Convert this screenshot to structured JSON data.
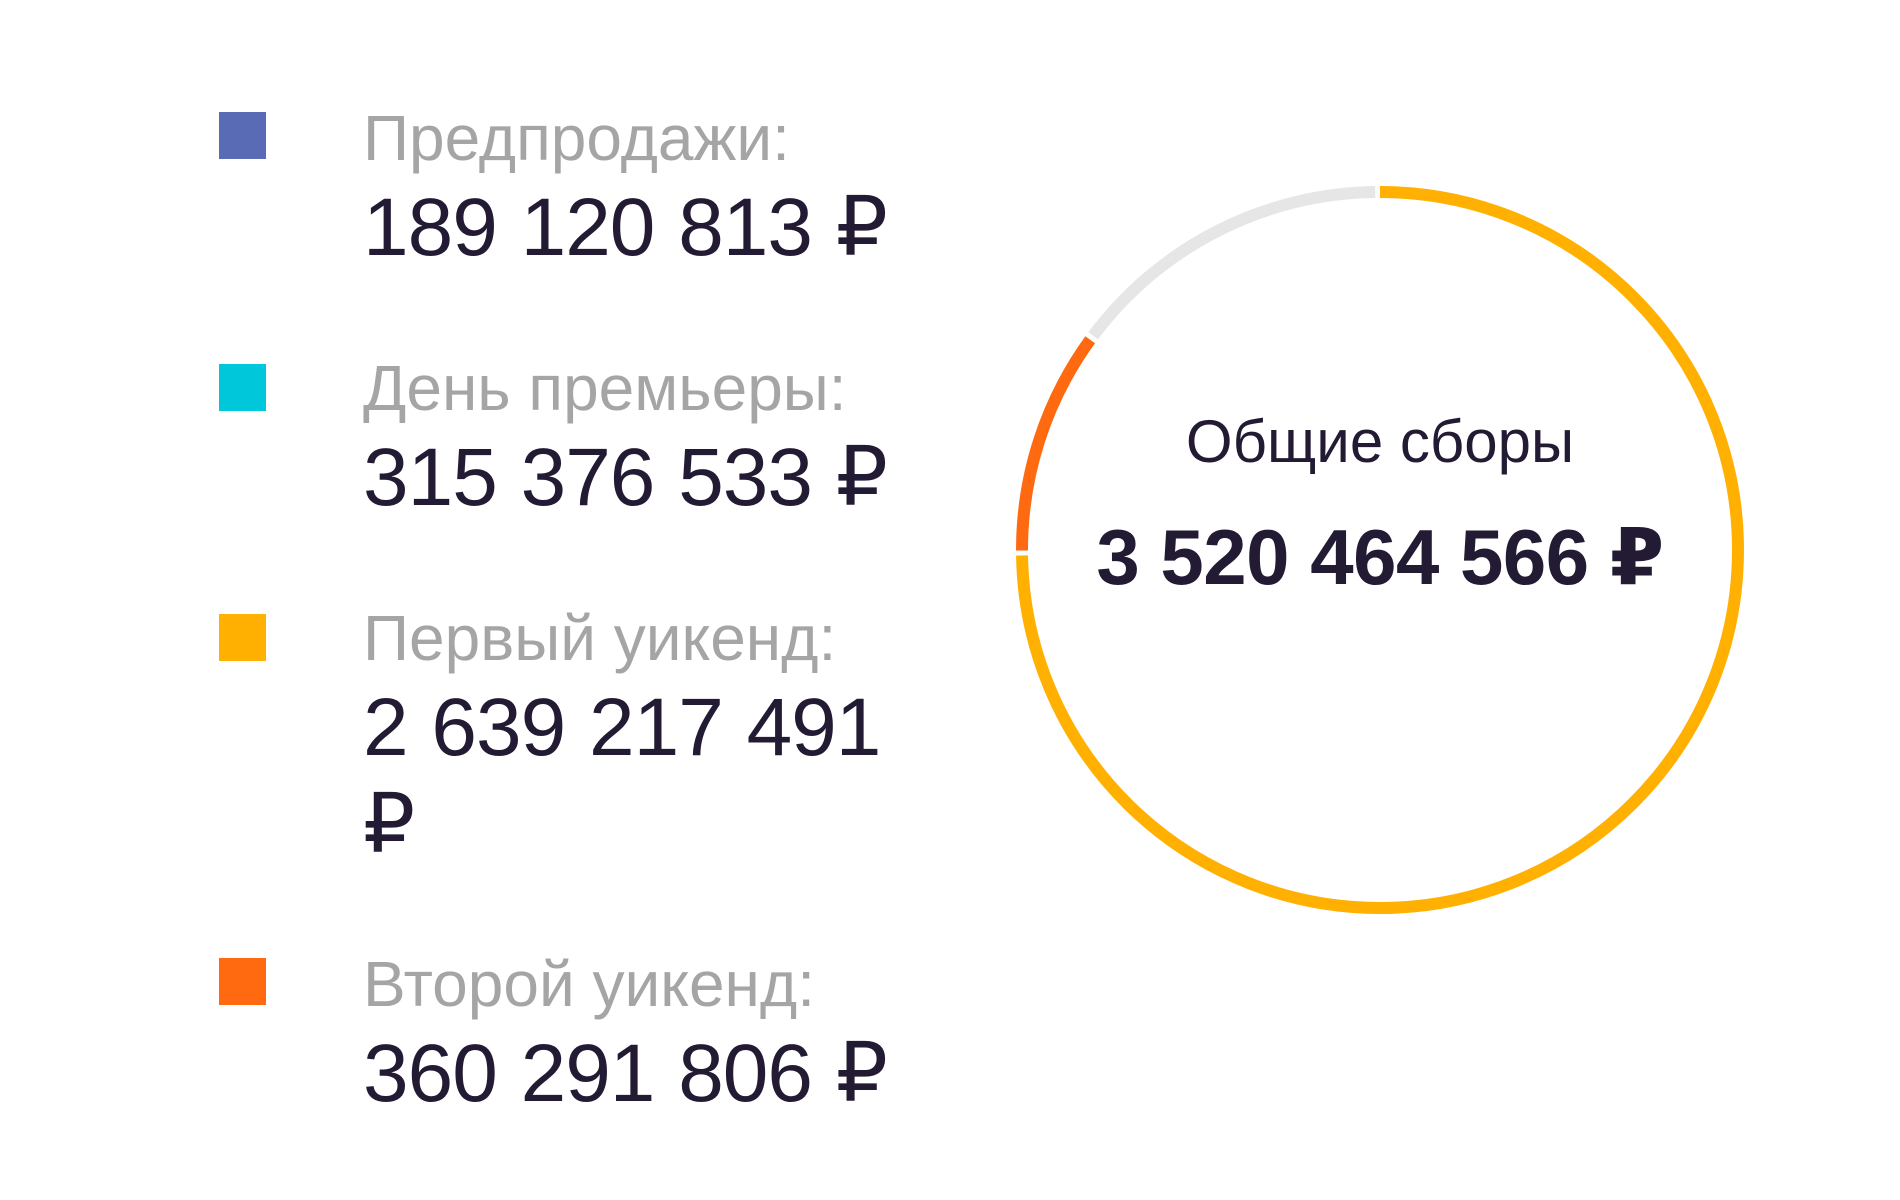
{
  "chart_data": {
    "type": "pie",
    "variant": "donut",
    "center_title": "Общие сборы",
    "center_value": "3 520 464 566 ₽",
    "total": 3520464566,
    "series": [
      {
        "name": "Предпродажи:",
        "value": 189120813,
        "value_text": "189 120 813 ₽",
        "color": "#5a6bb5"
      },
      {
        "name": "День премьеры:",
        "value": 315376533,
        "value_text": "315 376 533 ₽",
        "color": "#00c7d9"
      },
      {
        "name": "Первый уикенд:",
        "value": 2639217491,
        "value_text": "2 639 217 491 ₽",
        "color": "#ffb000"
      },
      {
        "name": "Второй уикенд:",
        "value": 360291806,
        "value_text": "360 291 806 ₽",
        "color": "#ff6a10"
      }
    ],
    "ring_visible_segments": [
      {
        "series": "Первый уикенд:",
        "value": 2639217491,
        "color": "#ffb000"
      },
      {
        "series": "Второй уикенд:",
        "value": 360291806,
        "color": "#ff6a10"
      }
    ],
    "ring_remainder": {
      "value": 520955269,
      "color": "#e6e6e6"
    },
    "start_angle": "top",
    "direction": "clockwise",
    "legend_position": "left"
  }
}
